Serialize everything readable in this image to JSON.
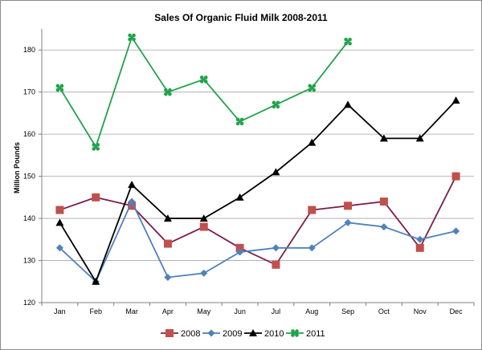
{
  "chart_data": {
    "type": "line",
    "title": "Sales Of Organic Fluid Milk 2008-2011",
    "ylabel": "Million Pounds",
    "xlabel": "",
    "categories": [
      "Jan",
      "Feb",
      "Mar",
      "Apr",
      "May",
      "Jun",
      "Jul",
      "Aug",
      "Sep",
      "Oct",
      "Nov",
      "Dec"
    ],
    "ylim": [
      120,
      185
    ],
    "yticks": [
      120,
      130,
      140,
      150,
      160,
      170,
      180
    ],
    "grid": "horizontal",
    "legend": "bottom",
    "series": [
      {
        "name": "2008",
        "color": "#7b1f4e",
        "marker": "square",
        "marker_color": "#c0504d",
        "values": [
          142,
          145,
          143,
          134,
          138,
          133,
          129,
          142,
          143,
          144,
          133,
          150
        ]
      },
      {
        "name": "2009",
        "color": "#4f81bd",
        "marker": "diamond",
        "marker_color": "#4f81bd",
        "values": [
          133,
          125,
          144,
          126,
          127,
          132,
          133,
          133,
          139,
          138,
          135,
          137
        ]
      },
      {
        "name": "2010",
        "color": "#000000",
        "marker": "triangle",
        "marker_color": "#000000",
        "values": [
          139,
          125,
          148,
          140,
          140,
          145,
          151,
          158,
          167,
          159,
          159,
          168
        ]
      },
      {
        "name": "2011",
        "color": "#1fa34a",
        "marker": "star",
        "marker_color": "#1fa34a",
        "values": [
          171,
          157,
          183,
          170,
          173,
          163,
          167,
          171,
          182,
          null,
          null,
          null
        ]
      }
    ]
  }
}
